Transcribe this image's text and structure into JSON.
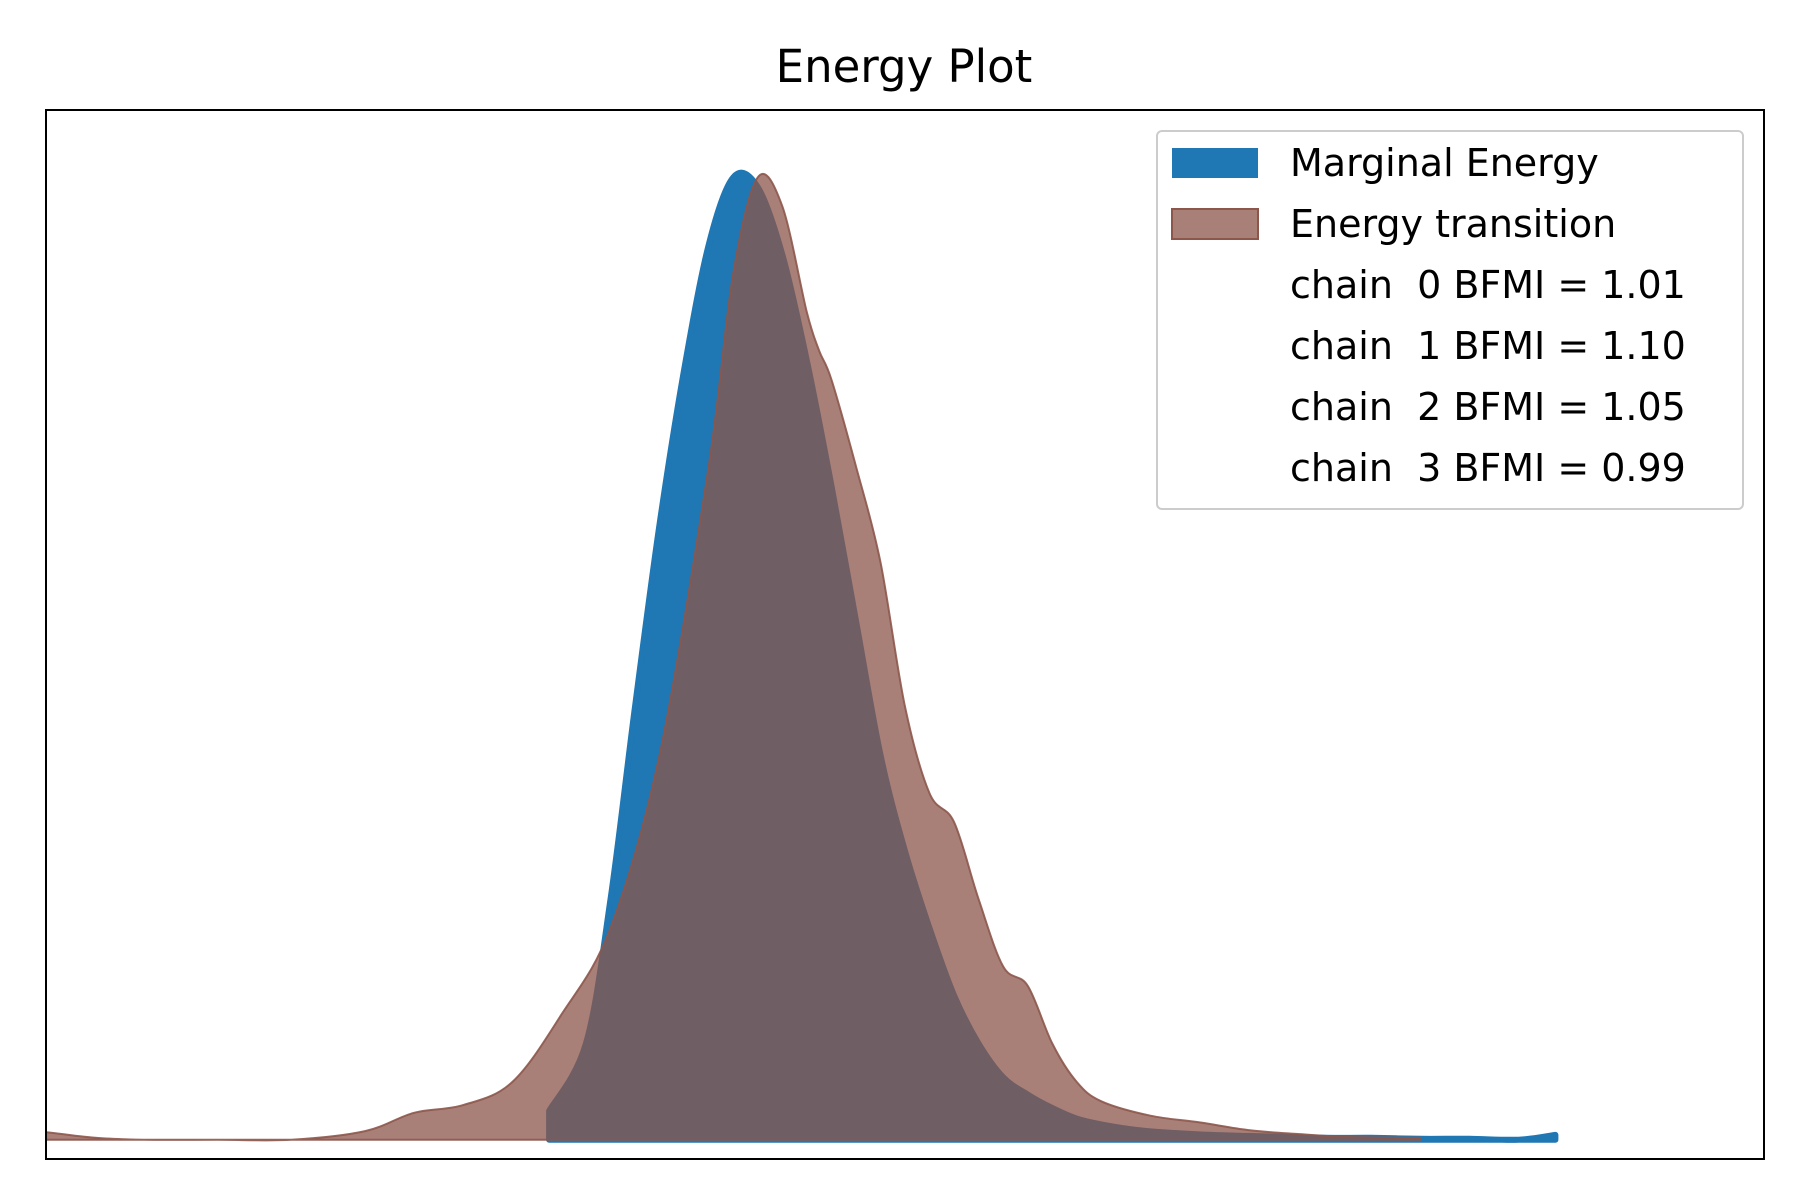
{
  "chart_data": {
    "type": "area",
    "title": "Energy Plot",
    "xlabel": "",
    "ylabel": "",
    "xlim": [
      -3.0,
      4.0
    ],
    "ylim": [
      -0.02,
      1.07
    ],
    "grid": false,
    "ticks_visible": false,
    "legend": {
      "placement": "top-right",
      "entries": [
        {
          "label": "Marginal Energy",
          "color": "#1f77b4"
        },
        {
          "label": "Energy transition",
          "color": "#8c564b"
        },
        {
          "label": "chain  0 BFMI = 1.01"
        },
        {
          "label": "chain  1 BFMI = 1.10"
        },
        {
          "label": "chain  2 BFMI = 1.05"
        },
        {
          "label": "chain  3 BFMI = 0.99"
        }
      ]
    },
    "series": [
      {
        "name": "Marginal Energy",
        "color": "#1f77b4",
        "opacity": 1.0,
        "x": [
          -0.95,
          -0.8,
          -0.7,
          -0.6,
          -0.5,
          -0.4,
          -0.3,
          -0.2,
          -0.1,
          0.0,
          0.1,
          0.2,
          0.3,
          0.4,
          0.5,
          0.6,
          0.7,
          0.8,
          0.9,
          1.0,
          1.1,
          1.2,
          1.3,
          1.45,
          1.6,
          1.75,
          1.9,
          2.05,
          2.2,
          2.4,
          2.6,
          2.8,
          3.0,
          3.15
        ],
        "y": [
          0.03,
          0.1,
          0.25,
          0.45,
          0.64,
          0.8,
          0.93,
          1.0,
          0.99,
          0.92,
          0.81,
          0.68,
          0.54,
          0.4,
          0.3,
          0.22,
          0.15,
          0.1,
          0.065,
          0.047,
          0.033,
          0.022,
          0.016,
          0.01,
          0.007,
          0.005,
          0.004,
          0.003,
          0.002,
          0.002,
          0.001,
          0.001,
          0.0,
          0.005
        ]
      },
      {
        "name": "Energy transition",
        "color": "#8c564b",
        "opacity": 0.75,
        "x": [
          -3.0,
          -2.8,
          -2.6,
          -2.3,
          -2.0,
          -1.7,
          -1.5,
          -1.3,
          -1.1,
          -0.9,
          -0.7,
          -0.5,
          -0.3,
          -0.2,
          -0.1,
          0.0,
          0.1,
          0.15,
          0.2,
          0.3,
          0.4,
          0.5,
          0.6,
          0.7,
          0.8,
          0.9,
          1.0,
          1.1,
          1.2,
          1.3,
          1.5,
          1.7,
          1.9,
          2.1,
          2.3,
          2.6
        ],
        "y": [
          0.008,
          0.002,
          0.0,
          0.0,
          0.0,
          0.009,
          0.028,
          0.036,
          0.06,
          0.13,
          0.22,
          0.4,
          0.7,
          0.9,
          1.0,
          0.97,
          0.86,
          0.82,
          0.79,
          0.7,
          0.6,
          0.45,
          0.36,
          0.33,
          0.25,
          0.18,
          0.16,
          0.1,
          0.06,
          0.04,
          0.025,
          0.018,
          0.01,
          0.006,
          0.003,
          0.002
        ]
      }
    ]
  }
}
